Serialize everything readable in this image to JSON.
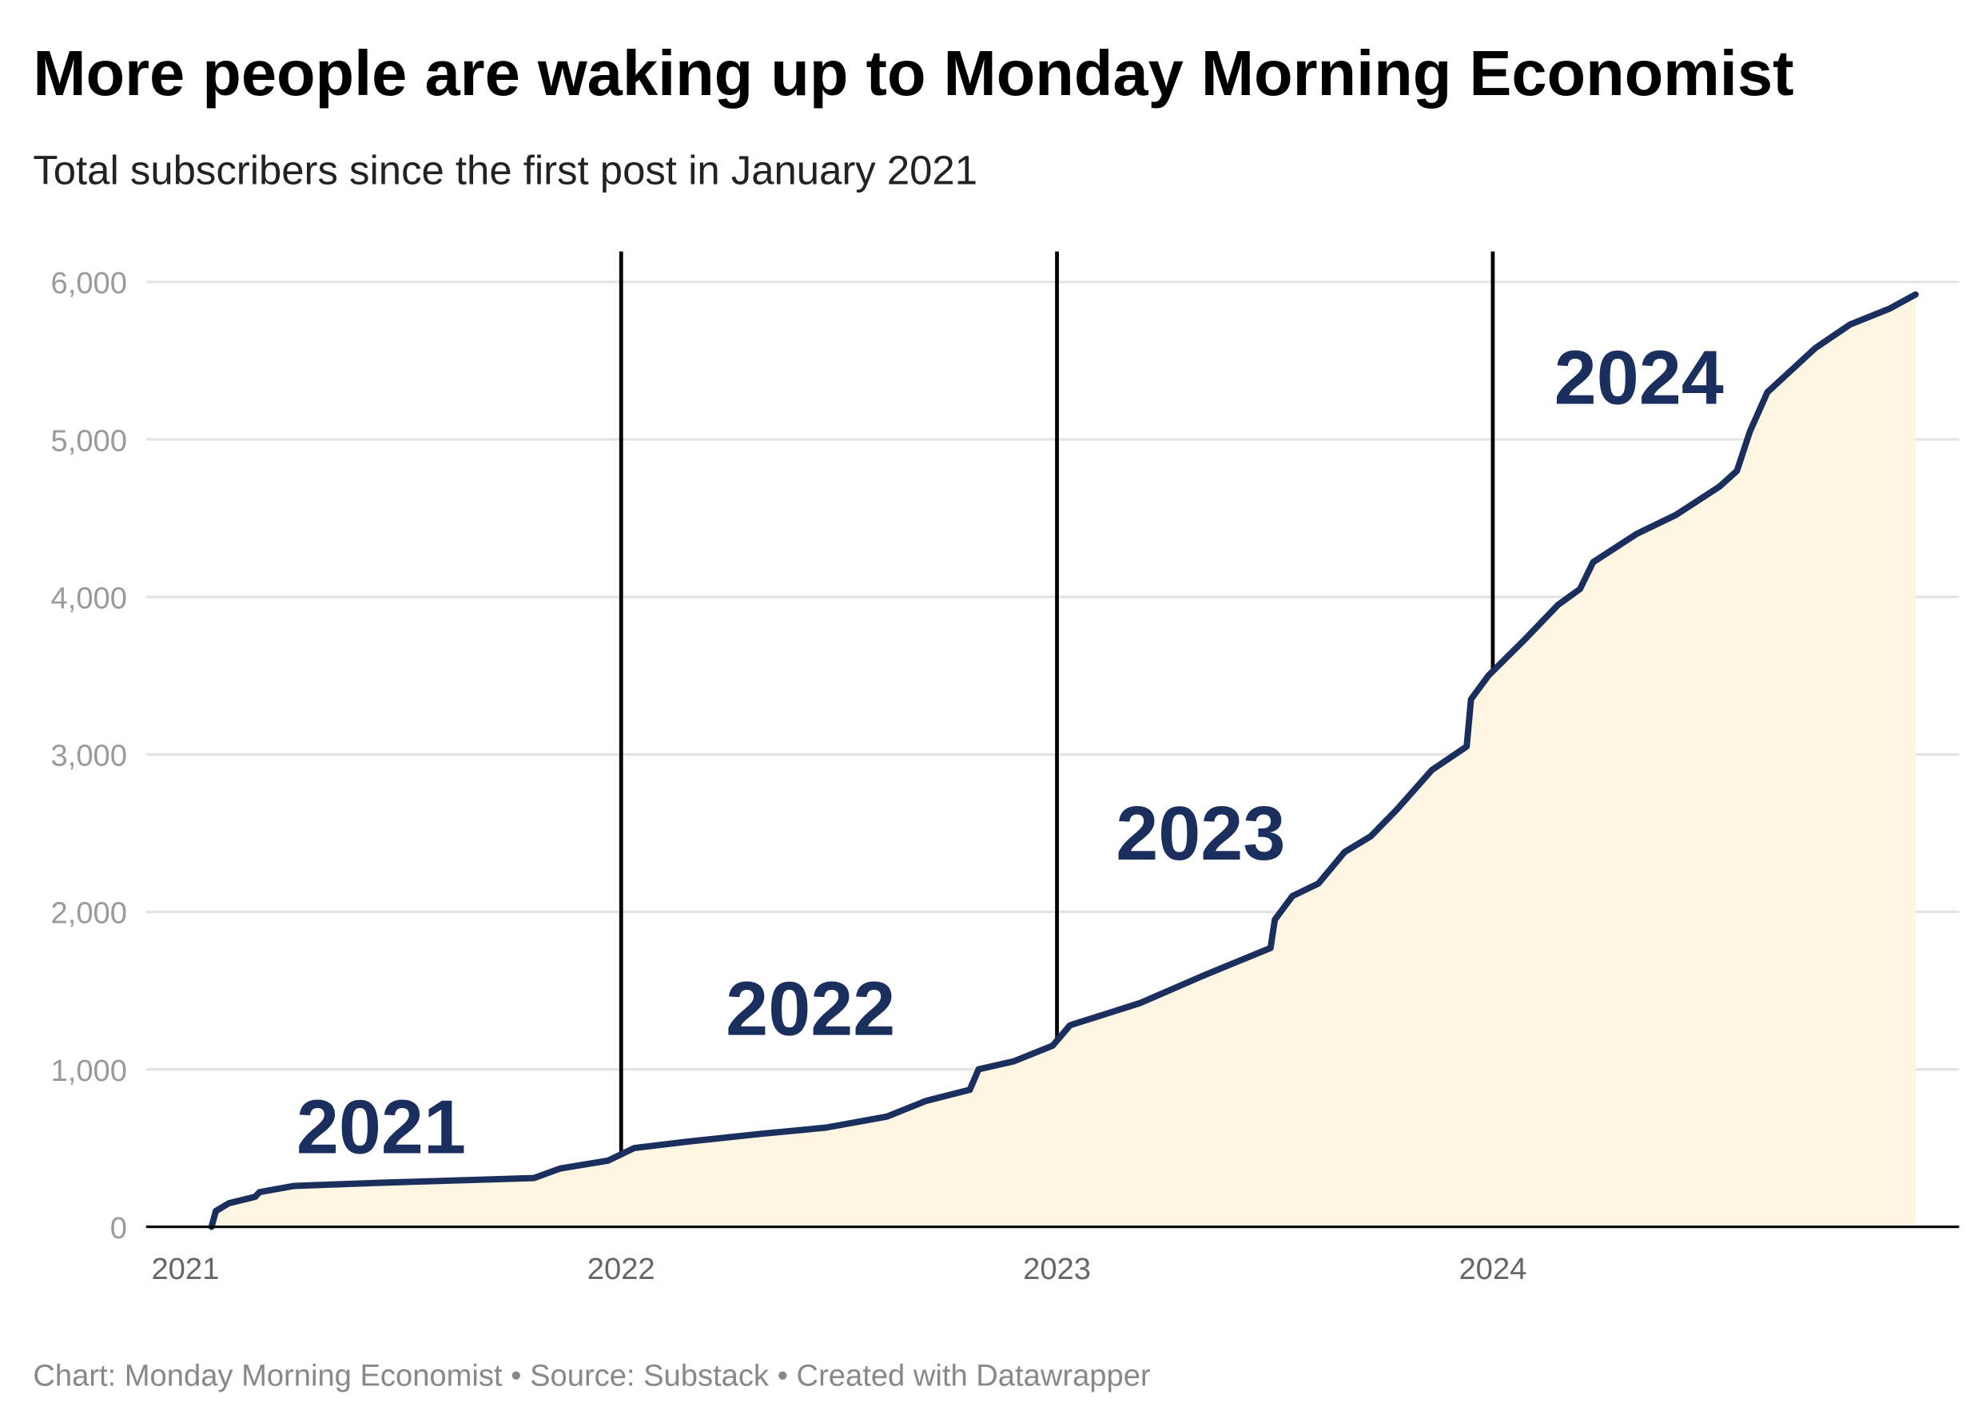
{
  "chart_data": {
    "type": "line",
    "title": "More people are waking up to Monday Morning Economist",
    "subtitle": "Total subscribers since the first post in January 2021",
    "footer": "Chart: Monday Morning Economist • Source: Substack • Created with Datawrapper",
    "annotations": [
      "2021",
      "2022",
      "2023",
      "2024"
    ],
    "x": [
      2021.06,
      2021.07,
      2021.1,
      2021.16,
      2021.17,
      2021.25,
      2021.45,
      2021.8,
      2021.86,
      2021.97,
      2022.03,
      2022.15,
      2022.32,
      2022.47,
      2022.61,
      2022.7,
      2022.8,
      2022.82,
      2022.9,
      2022.99,
      2023.03,
      2023.19,
      2023.34,
      2023.49,
      2023.5,
      2023.54,
      2023.6,
      2023.66,
      2023.72,
      2023.78,
      2023.86,
      2023.94,
      2023.95,
      2023.99,
      2024.07,
      2024.15,
      2024.2,
      2024.23,
      2024.33,
      2024.42,
      2024.52,
      2024.56,
      2024.59,
      2024.63,
      2024.74,
      2024.82,
      2024.91,
      2024.97
    ],
    "series": [
      {
        "name": "Total subscribers",
        "color": "#1b2f5e",
        "area_color": "#fdf6e2",
        "values": [
          0,
          100,
          150,
          190,
          220,
          260,
          280,
          310,
          370,
          420,
          500,
          540,
          590,
          630,
          700,
          800,
          870,
          1000,
          1050,
          1150,
          1280,
          1420,
          1600,
          1770,
          1950,
          2100,
          2180,
          2380,
          2480,
          2650,
          2900,
          3050,
          3350,
          3500,
          3720,
          3950,
          4050,
          4220,
          4400,
          4520,
          4700,
          4800,
          5050,
          5300,
          5580,
          5730,
          5830,
          5920
        ]
      }
    ],
    "xlim": [
      2020.91,
      2025.07
    ],
    "xticks": [
      2021,
      2022,
      2023,
      2024
    ],
    "ylim": [
      0,
      6000
    ],
    "yticks": [
      0,
      {
        "value": 1000,
        "label": "1,000"
      },
      {
        "value": 2000,
        "label": "2,000"
      },
      {
        "value": 3000,
        "label": "3,000"
      },
      {
        "value": 4000,
        "label": "4,000"
      },
      {
        "value": 5000,
        "label": "5,000"
      },
      {
        "value": 6000,
        "label": "6,000"
      }
    ],
    "grid": true
  }
}
